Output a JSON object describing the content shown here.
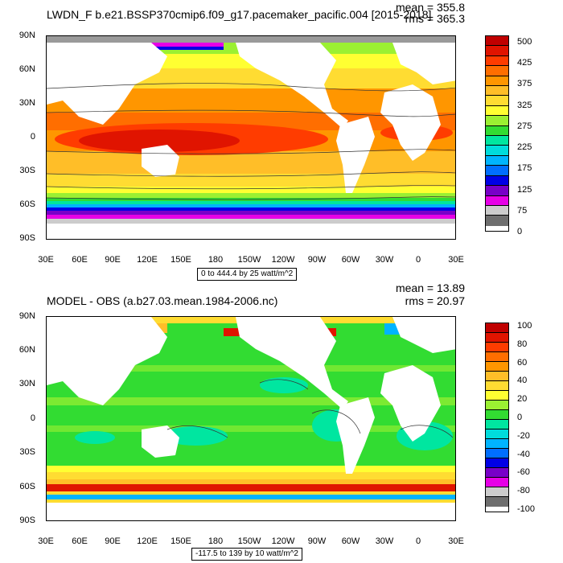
{
  "lat_labels": [
    "90N",
    "60N",
    "30N",
    "0",
    "30S",
    "60S",
    "90S"
  ],
  "lon_labels": [
    "30E",
    "60E",
    "90E",
    "120E",
    "150E",
    "180",
    "150W",
    "120W",
    "90W",
    "60W",
    "30W",
    "0",
    "30E"
  ],
  "panels": [
    {
      "title": "LWDN_F b.e21.BSSP370cmip6.f09_g17.pacemaker_pacific.004 [2015-2018]",
      "mean": "mean = 355.8",
      "rms": "rms = 365.3",
      "range_label": "0 to 444.4 by 25 watt/m^2",
      "colorbar": {
        "labels": [
          "500",
          "425",
          "375",
          "325",
          "275",
          "225",
          "175",
          "125",
          "75",
          "0"
        ],
        "colors": [
          "#c00000",
          "#e01400",
          "#ff3c00",
          "#ff6e00",
          "#ff9600",
          "#ffbe28",
          "#ffdc32",
          "#ffff32",
          "#9bf032",
          "#32dc32",
          "#00e6a0",
          "#00dcdc",
          "#00b4ff",
          "#006eff",
          "#0000e6",
          "#7800c8",
          "#e600e6",
          "#cccccc",
          "#6e6e6e"
        ]
      }
    },
    {
      "title": "MODEL - OBS (a.b27.03.mean.1984-2006.nc)",
      "mean": "mean = 13.89",
      "rms": "rms = 20.97",
      "range_label": "-117.5 to 139 by 10 watt/m^2",
      "colorbar": {
        "labels": [
          "100",
          "80",
          "60",
          "40",
          "20",
          "0",
          "-20",
          "-40",
          "-60",
          "-80",
          "-100"
        ],
        "colors": [
          "#c00000",
          "#e01400",
          "#ff3c00",
          "#ff6e00",
          "#ff9600",
          "#ffbe28",
          "#ffdc32",
          "#ffff32",
          "#9bf032",
          "#32dc32",
          "#00e6a0",
          "#00dcdc",
          "#00b4ff",
          "#006eff",
          "#0000e6",
          "#7800c8",
          "#e600e6",
          "#cccccc",
          "#6e6e6e"
        ]
      }
    }
  ],
  "colors": {
    "land": "#ffffff",
    "ice": "#9a9a9a",
    "contour": "#333333"
  }
}
